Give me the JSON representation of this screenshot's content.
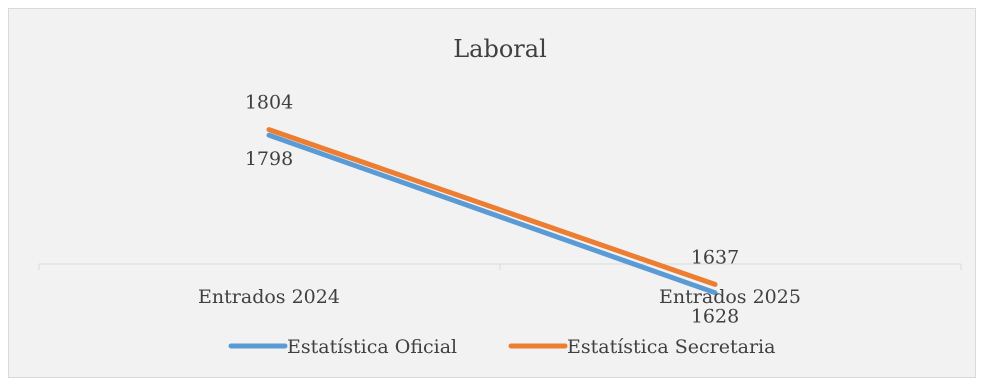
{
  "chart_data": {
    "type": "line",
    "title": "Laboral",
    "categories": [
      "Entrados 2024",
      "Entrados 2025"
    ],
    "series": [
      {
        "name": "Estatística Oficial",
        "values": [
          1798,
          1628
        ],
        "color": "#5b9bd5"
      },
      {
        "name": "Estatística Secretaria",
        "values": [
          1804,
          1637
        ],
        "color": "#ed7d31"
      }
    ],
    "xlabel": "",
    "ylabel": "",
    "grid": false,
    "legend": "bottom"
  }
}
